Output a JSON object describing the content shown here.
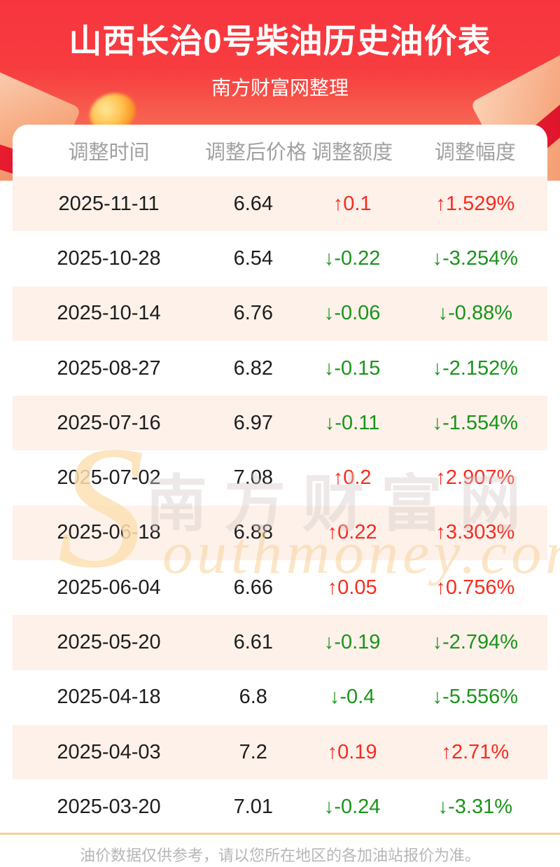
{
  "header": {
    "title": "山西长治0号柴油历史油价表",
    "subtitle": "南方财富网整理"
  },
  "table": {
    "columns": [
      "调整时间",
      "调整后价格",
      "调整额度",
      "调整幅度"
    ],
    "rows": [
      {
        "date": "2025-11-11",
        "price": "6.64",
        "change": "↑0.1",
        "pct": "↑1.529%",
        "dir": "up"
      },
      {
        "date": "2025-10-28",
        "price": "6.54",
        "change": "↓-0.22",
        "pct": "↓-3.254%",
        "dir": "down"
      },
      {
        "date": "2025-10-14",
        "price": "6.76",
        "change": "↓-0.06",
        "pct": "↓-0.88%",
        "dir": "down"
      },
      {
        "date": "2025-08-27",
        "price": "6.82",
        "change": "↓-0.15",
        "pct": "↓-2.152%",
        "dir": "down"
      },
      {
        "date": "2025-07-16",
        "price": "6.97",
        "change": "↓-0.11",
        "pct": "↓-1.554%",
        "dir": "down"
      },
      {
        "date": "2025-07-02",
        "price": "7.08",
        "change": "↑0.2",
        "pct": "↑2.907%",
        "dir": "up"
      },
      {
        "date": "2025-06-18",
        "price": "6.88",
        "change": "↑0.22",
        "pct": "↑3.303%",
        "dir": "up"
      },
      {
        "date": "2025-06-04",
        "price": "6.66",
        "change": "↑0.05",
        "pct": "↑0.756%",
        "dir": "up"
      },
      {
        "date": "2025-05-20",
        "price": "6.61",
        "change": "↓-0.19",
        "pct": "↓-2.794%",
        "dir": "down"
      },
      {
        "date": "2025-04-18",
        "price": "6.8",
        "change": "↓-0.4",
        "pct": "↓-5.556%",
        "dir": "down"
      },
      {
        "date": "2025-04-03",
        "price": "7.2",
        "change": "↑0.19",
        "pct": "↑2.71%",
        "dir": "up"
      },
      {
        "date": "2025-03-20",
        "price": "7.01",
        "change": "↓-0.24",
        "pct": "↓-3.31%",
        "dir": "down"
      }
    ]
  },
  "watermark": {
    "s": "S",
    "cn": "南方财富网",
    "en": "outhmoney.com"
  },
  "footer": {
    "note": "油价数据仅供参考，请以您所在地区的各加油站报价为准。"
  },
  "colors": {
    "up": "#f82b1f",
    "down": "#1a941a",
    "banner_top": "#f7353f",
    "banner_bottom": "#f49b72",
    "row_alt": "#fdf1ea",
    "divider": "#f8cf9a"
  }
}
